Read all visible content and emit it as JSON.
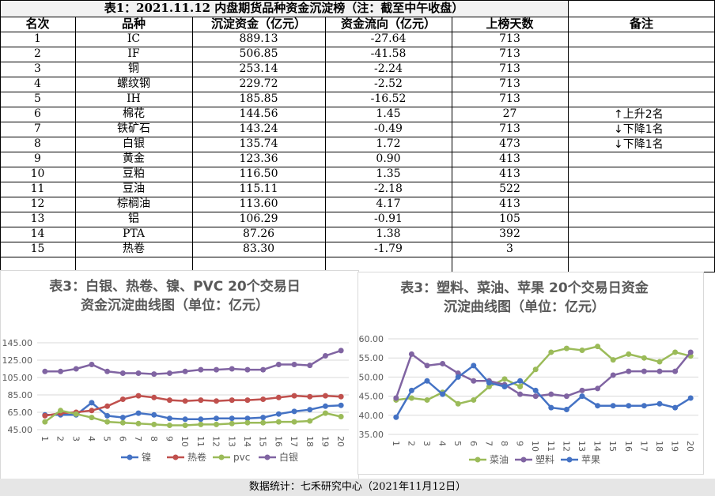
{
  "table": {
    "title": "表1：2021.11.12 内盘期货品种资金沉淀榜（注：截至中午收盘）",
    "headers": [
      "名次",
      "品种",
      "沉淀资金（亿元）",
      "资金流向（亿元）",
      "上榜天数",
      "备注"
    ],
    "rows": [
      [
        "1",
        "IC",
        "889.13",
        "-27.64",
        "713",
        ""
      ],
      [
        "2",
        "IF",
        "506.85",
        "-41.58",
        "713",
        ""
      ],
      [
        "3",
        "铜",
        "253.14",
        "-2.24",
        "713",
        ""
      ],
      [
        "4",
        "螺纹钢",
        "229.72",
        "-2.52",
        "713",
        ""
      ],
      [
        "5",
        "IH",
        "185.85",
        "-16.52",
        "713",
        ""
      ],
      [
        "6",
        "棉花",
        "144.56",
        "1.45",
        "27",
        "上升2名"
      ],
      [
        "7",
        "铁矿石",
        "143.24",
        "-0.49",
        "713",
        "下降1名"
      ],
      [
        "8",
        "白银",
        "135.74",
        "1.72",
        "473",
        "下降1名"
      ],
      [
        "9",
        "黄金",
        "123.36",
        "0.90",
        "413",
        ""
      ],
      [
        "10",
        "豆粕",
        "116.50",
        "1.35",
        "413",
        ""
      ],
      [
        "11",
        "豆油",
        "115.11",
        "-2.18",
        "522",
        ""
      ],
      [
        "12",
        "棕榈油",
        "113.60",
        "4.17",
        "413",
        ""
      ],
      [
        "13",
        "铝",
        "106.29",
        "-0.91",
        "105",
        ""
      ],
      [
        "14",
        "PTA",
        "87.26",
        "1.38",
        "392",
        ""
      ],
      [
        "15",
        "热卷",
        "83.30",
        "-1.79",
        "3",
        ""
      ]
    ],
    "note_arrows": {
      "up": "↑",
      "down": "↓"
    }
  },
  "chart_data": [
    {
      "type": "line",
      "title_line1": "表3：白银、热卷、镍、PVC 20个交易日",
      "title_line2": "资金沉淀曲线图（单位：亿元）",
      "x": [
        "1",
        "2",
        "3",
        "4",
        "5",
        "6",
        "7",
        "8",
        "9",
        "10",
        "11",
        "12",
        "13",
        "14",
        "15",
        "16",
        "17",
        "18",
        "19",
        "20"
      ],
      "ylim": [
        45,
        145
      ],
      "yticks": [
        "45.00",
        "65.00",
        "85.00",
        "105.00",
        "125.00",
        "145.00"
      ],
      "legend_position": "bottom",
      "series": [
        {
          "name": "镍",
          "color": "#4472c4",
          "values": [
            62,
            62,
            62,
            76,
            61,
            59,
            64,
            62,
            58,
            57,
            57,
            58,
            58,
            58,
            59,
            63,
            66,
            68,
            72,
            73
          ]
        },
        {
          "name": "热卷",
          "color": "#c0504d",
          "values": [
            61,
            64,
            65,
            67,
            72,
            80,
            84,
            82,
            79,
            78,
            79,
            78,
            79,
            79,
            80,
            82,
            84,
            83,
            84,
            83
          ]
        },
        {
          "name": "pvc",
          "color": "#9bbb59",
          "values": [
            54,
            67,
            63,
            59,
            54,
            53,
            52,
            51,
            50,
            50,
            51,
            51,
            52,
            53,
            53,
            54,
            54,
            55,
            64,
            60
          ]
        },
        {
          "name": "白银",
          "color": "#8064a2",
          "values": [
            112,
            112,
            115,
            120,
            112,
            110,
            110,
            109,
            110,
            112,
            114,
            114,
            115,
            114,
            114,
            120,
            120,
            119,
            130,
            136
          ]
        }
      ]
    },
    {
      "type": "line",
      "title_line1": "表3：塑料、菜油、苹果 20个交易日资金",
      "title_line2": "沉淀曲线图（单位：亿元）",
      "x": [
        "1",
        "2",
        "3",
        "4",
        "5",
        "6",
        "7",
        "8",
        "9",
        "10",
        "11",
        "12",
        "13",
        "14",
        "15",
        "16",
        "17",
        "18",
        "19",
        "20"
      ],
      "ylim": [
        35,
        60
      ],
      "yticks": [
        "35.00",
        "40.00",
        "45.00",
        "50.00",
        "55.00",
        "60.00"
      ],
      "legend_position": "bottom",
      "series": [
        {
          "name": "菜油",
          "color": "#9bbb59",
          "values": [
            44.0,
            44.5,
            44.0,
            46.0,
            43.0,
            44.0,
            47.5,
            49.5,
            47.5,
            52.0,
            56.5,
            57.5,
            57.0,
            58.0,
            54.5,
            56.0,
            55.0,
            54.0,
            56.5,
            55.5
          ]
        },
        {
          "name": "塑料",
          "color": "#8064a2",
          "values": [
            44.5,
            56.0,
            53.0,
            53.5,
            51.0,
            49.0,
            49.0,
            48.0,
            45.5,
            45.0,
            45.5,
            45.0,
            46.5,
            47.0,
            50.5,
            51.5,
            51.5,
            51.5,
            51.5,
            56.5
          ]
        },
        {
          "name": "苹果",
          "color": "#4472c4",
          "values": [
            39.5,
            46.5,
            49.0,
            45.5,
            50.0,
            53.0,
            48.5,
            47.5,
            49.0,
            46.5,
            42.0,
            41.5,
            45.0,
            42.5,
            42.5,
            42.5,
            42.5,
            43.0,
            42.0,
            44.5
          ]
        }
      ]
    }
  ],
  "footer": "数据统计：七禾研究中心（2021年11月12日）"
}
